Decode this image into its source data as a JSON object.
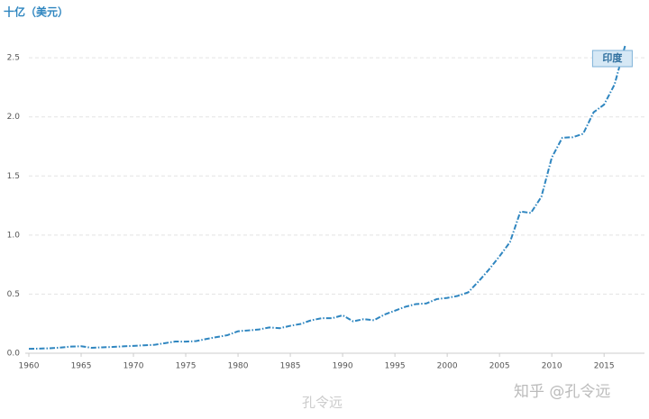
{
  "chart_data": {
    "type": "line",
    "y_axis_label": "十亿（美元）",
    "x": [
      1960,
      1961,
      1962,
      1963,
      1964,
      1965,
      1966,
      1967,
      1968,
      1969,
      1970,
      1971,
      1972,
      1973,
      1974,
      1975,
      1976,
      1977,
      1978,
      1979,
      1980,
      1981,
      1982,
      1983,
      1984,
      1985,
      1986,
      1987,
      1988,
      1989,
      1990,
      1991,
      1992,
      1993,
      1994,
      1995,
      1996,
      1997,
      1998,
      1999,
      2000,
      2001,
      2002,
      2003,
      2004,
      2005,
      2006,
      2007,
      2008,
      2009,
      2010,
      2011,
      2012,
      2013,
      2014,
      2015,
      2016,
      2017
    ],
    "series": [
      {
        "name": "印度",
        "color": "#2f86c0",
        "values": [
          0.037,
          0.039,
          0.042,
          0.048,
          0.056,
          0.059,
          0.046,
          0.05,
          0.053,
          0.058,
          0.062,
          0.067,
          0.071,
          0.085,
          0.099,
          0.098,
          0.103,
          0.121,
          0.137,
          0.153,
          0.186,
          0.193,
          0.201,
          0.218,
          0.212,
          0.232,
          0.248,
          0.279,
          0.296,
          0.296,
          0.321,
          0.27,
          0.288,
          0.279,
          0.327,
          0.36,
          0.393,
          0.416,
          0.421,
          0.458,
          0.468,
          0.485,
          0.515,
          0.608,
          0.709,
          0.82,
          0.94,
          1.199,
          1.187,
          1.323,
          1.656,
          1.823,
          1.828,
          1.857,
          2.039,
          2.104,
          2.274,
          2.6
        ]
      }
    ],
    "xlim": [
      1960,
      2018
    ],
    "xticks": [
      1960,
      1965,
      1970,
      1975,
      1980,
      1985,
      1990,
      1995,
      2000,
      2005,
      2010,
      2015
    ],
    "ylim": [
      0,
      2.6
    ],
    "yticks": [
      {
        "value": 0,
        "label": "0.0"
      },
      {
        "value": 0.5,
        "label": "0.5"
      },
      {
        "value": 1,
        "label": "1.0"
      },
      {
        "value": 1.5,
        "label": "1.5"
      },
      {
        "value": 2,
        "label": "2.0"
      },
      {
        "value": 2.5,
        "label": "2.5"
      }
    ],
    "grid": true,
    "watermarks": [
      "知乎 @孔令远",
      "孔令远"
    ]
  }
}
